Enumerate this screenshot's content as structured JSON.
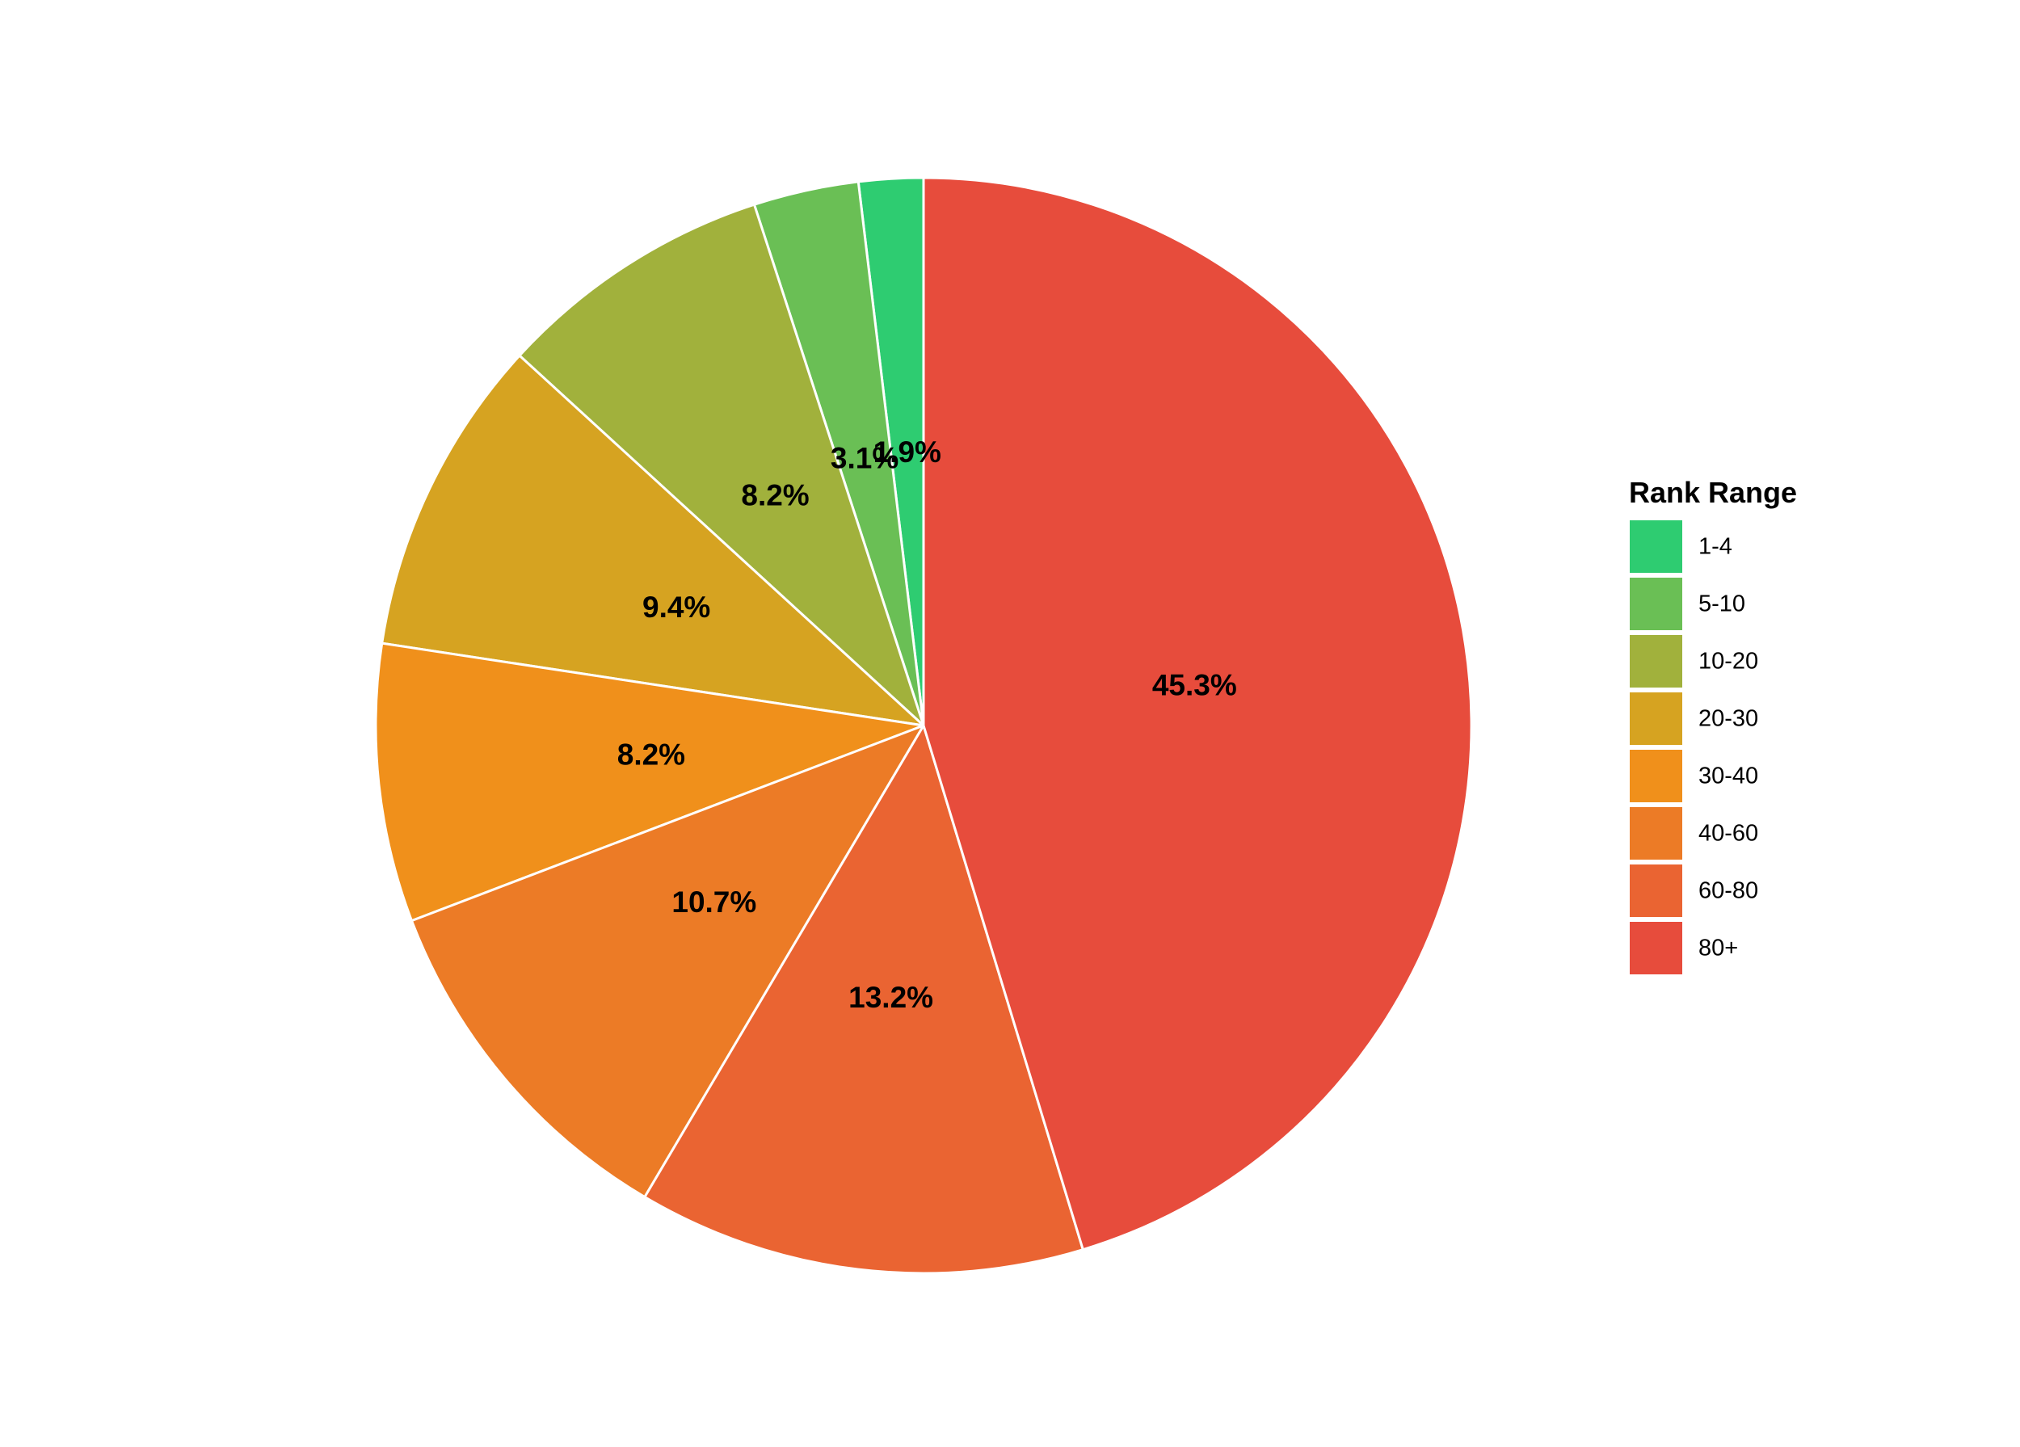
{
  "chart_data": {
    "type": "pie",
    "title": "",
    "categories": [
      "1-4",
      "5-10",
      "10-20",
      "20-30",
      "30-40",
      "40-60",
      "60-80",
      "80+"
    ],
    "values": [
      1.9,
      3.1,
      8.2,
      9.4,
      8.2,
      10.7,
      13.2,
      45.3
    ],
    "labels": [
      "1.9%",
      "3.1%",
      "8.2%",
      "9.4%",
      "8.2%",
      "10.7%",
      "13.2%",
      "45.3%"
    ],
    "colors": [
      "#2ecc71",
      "#6abf55",
      "#a1b13c",
      "#d6a321",
      "#f0901b",
      "#ec7b26",
      "#ea6432",
      "#e74c3c"
    ],
    "direction": "counterclockwise",
    "start_angle": "12 o'clock",
    "legend": {
      "title": "Rank Range",
      "placement": "right"
    }
  }
}
